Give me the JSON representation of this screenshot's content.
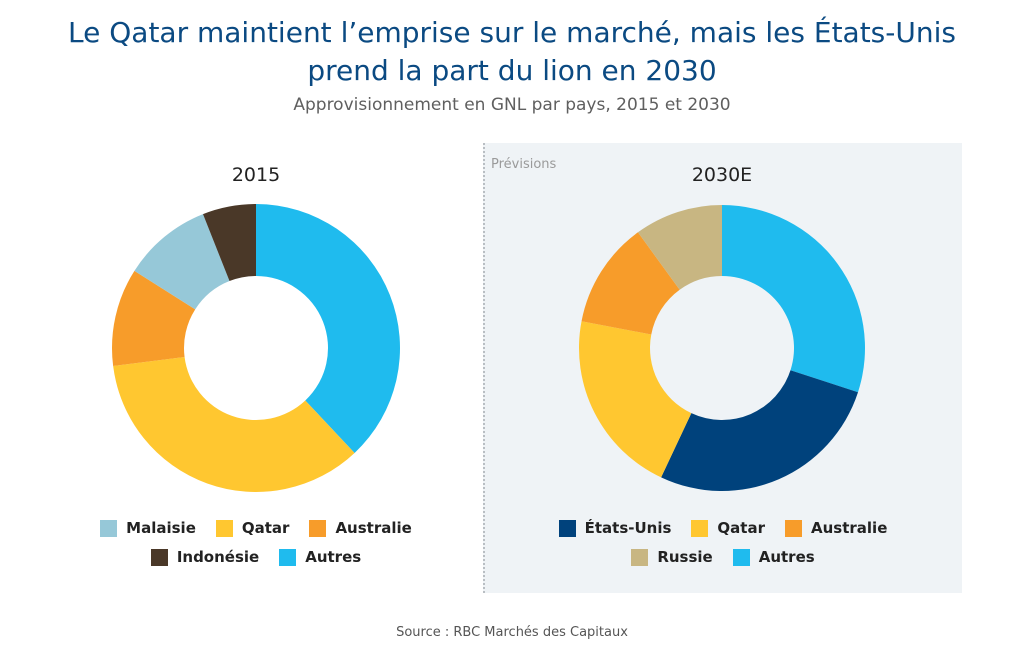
{
  "header": {
    "title_line1": "Le Qatar maintient l’emprise sur le marché, mais les États-Unis",
    "title_line2": "prend la part du lion en 2030",
    "subtitle": "Approvisionnement en GNL par pays, 2015 et 2030"
  },
  "forecast_label": "Prévisions",
  "source": "Source : RBC Marchés des Capitaux",
  "colors": {
    "Malaisie": "#96c8d8",
    "Qatar": "#ffc730",
    "Australie": "#f79c2a",
    "Indonésie": "#4a3828",
    "Autres": "#1fbbee",
    "États-Unis": "#00427c",
    "Russie": "#c8b682"
  },
  "chart_data": [
    {
      "type": "pie",
      "donut": true,
      "title": "2015",
      "categories": [
        "Autres",
        "Qatar",
        "Australie",
        "Malaisie",
        "Indonésie"
      ],
      "values": [
        38,
        35,
        11,
        10,
        6
      ],
      "unit": "%",
      "legend": [
        [
          "Malaisie",
          "Qatar",
          "Australie"
        ],
        [
          "Indonésie",
          "Autres"
        ]
      ],
      "legend_position": "bottom"
    },
    {
      "type": "pie",
      "donut": true,
      "title": "2030E",
      "categories": [
        "Autres",
        "États-Unis",
        "Qatar",
        "Australie",
        "Russie"
      ],
      "values": [
        30,
        27,
        21,
        12,
        10
      ],
      "unit": "%",
      "legend": [
        [
          "États-Unis",
          "Qatar",
          "Australie"
        ],
        [
          "Russie",
          "Autres"
        ]
      ],
      "legend_position": "bottom"
    }
  ]
}
